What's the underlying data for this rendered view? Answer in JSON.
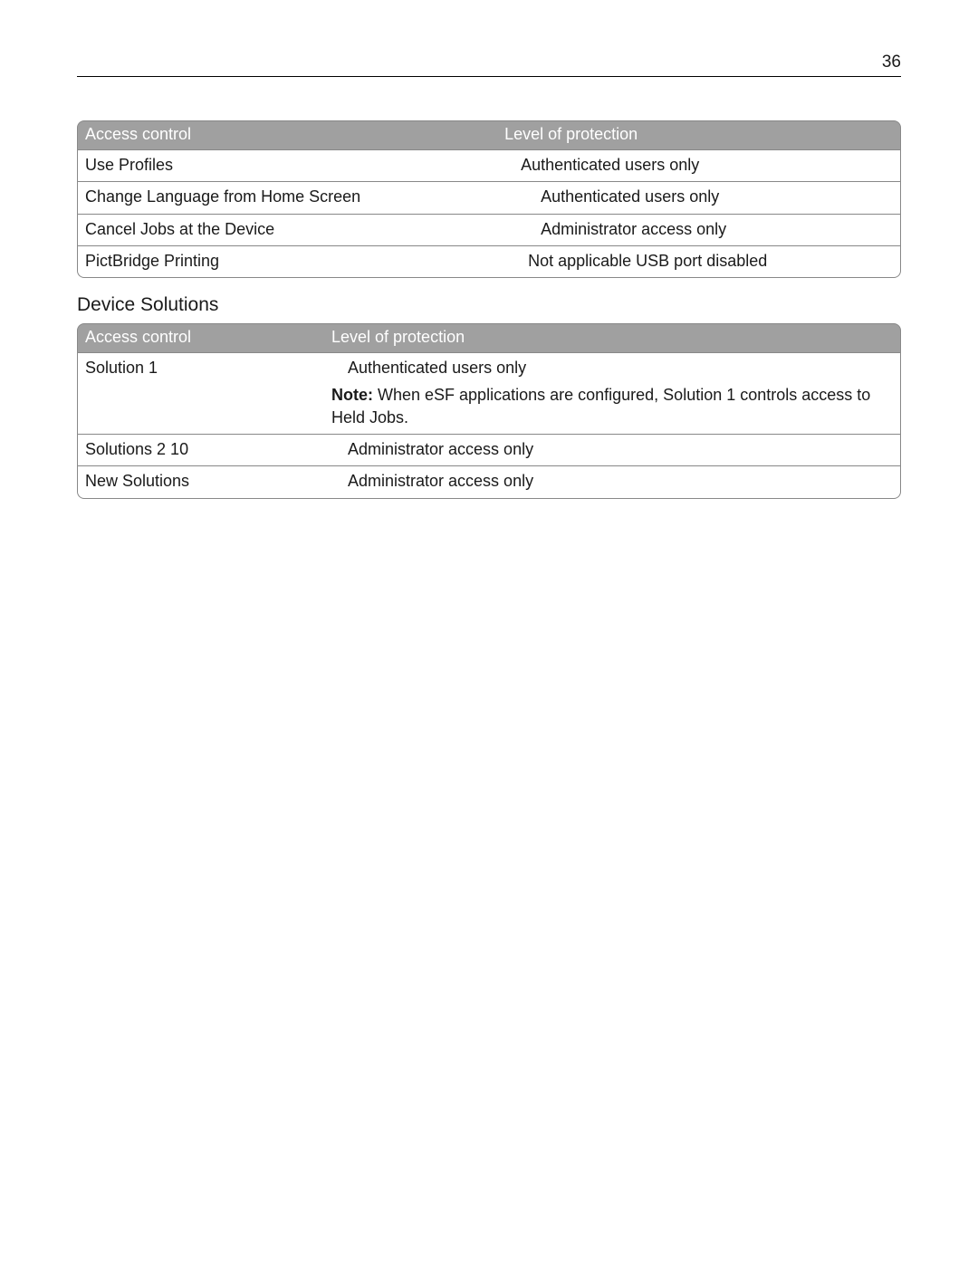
{
  "page_number": "36",
  "table1": {
    "headers": [
      "Access control",
      "Level of protection"
    ],
    "col_widths": [
      "51%",
      "49%"
    ],
    "rows": [
      {
        "c1": "Use Profiles",
        "c2": "Authenticated users only",
        "c2_pad": "pad-left-sm"
      },
      {
        "c1": "Change Language from Home Screen",
        "c2": "Authenticated users only",
        "c2_pad": "pad-left-md"
      },
      {
        "c1": "Cancel Jobs at the Device",
        "c2": "Administrator access only",
        "c2_pad": "pad-left-md"
      },
      {
        "c1": "PictBridge Printing",
        "c2": "Not applicable USB port disabled",
        "c2_pad": "pad-left-lg"
      }
    ]
  },
  "section2_heading": "Device Solutions",
  "table2": {
    "headers": [
      "Access control",
      "Level of protection"
    ],
    "col_widths": [
      "30%",
      "70%"
    ],
    "rows": [
      {
        "c1": "Solution 1",
        "c2_main": "Authenticated users only",
        "c2_main_pad": "pad-left-sm",
        "note_label": "Note:",
        "note_text": " When eSF applications are configured, Solution 1 controls access to Held Jobs."
      },
      {
        "c1": "Solutions 2 10",
        "c2_main": "Administrator access only",
        "c2_main_pad": "pad-left-sm"
      },
      {
        "c1": "New Solutions",
        "c2_main": "Administrator access only",
        "c2_main_pad": "pad-left-sm"
      }
    ]
  },
  "colors": {
    "header_bg": "#a0a0a0",
    "header_text": "#ffffff",
    "border": "#888888",
    "text": "#1a1a1a",
    "background": "#ffffff"
  },
  "typography": {
    "body_fontsize": 18,
    "heading_fontsize": 21,
    "pagenum_fontsize": 19,
    "font_family": "Arial"
  }
}
